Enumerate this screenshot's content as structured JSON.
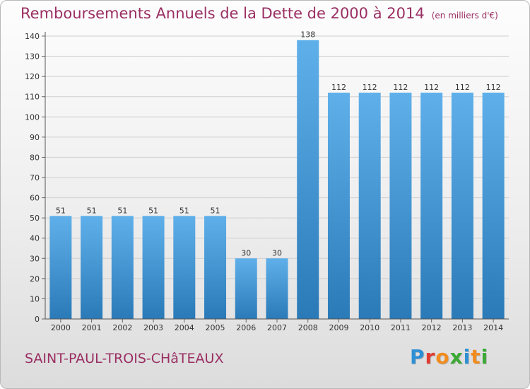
{
  "header": {
    "title": "Remboursements Annuels de la Dette de 2000 à 2014",
    "unit_note": "(en milliers d'€)"
  },
  "footer": {
    "city": "SAINT-PAUL-TROIS-CHâTEAUX",
    "logo_text": "Proxiti",
    "logo_letter_colors": [
      "#2d8fd5",
      "#e03c31",
      "#f28c1e",
      "#3aa935",
      "#2d8fd5",
      "#f28c1e",
      "#3aa935"
    ]
  },
  "colors": {
    "accent_text": "#9a2f63",
    "bar_top": "#5fb0ea",
    "bar_bottom": "#2a7ab8"
  },
  "chart_data": {
    "type": "bar",
    "title": "Remboursements Annuels de la Dette de 2000 à 2014",
    "subtitle": "(en milliers d'€)",
    "xlabel": "",
    "ylabel": "",
    "categories": [
      "2000",
      "2001",
      "2002",
      "2003",
      "2004",
      "2005",
      "2006",
      "2007",
      "2008",
      "2009",
      "2010",
      "2011",
      "2012",
      "2013",
      "2014"
    ],
    "values": [
      51,
      51,
      51,
      51,
      51,
      51,
      30,
      30,
      138,
      112,
      112,
      112,
      112,
      112,
      112
    ],
    "ylim": [
      0,
      140
    ],
    "yticks": [
      0,
      10,
      20,
      30,
      40,
      50,
      60,
      70,
      80,
      90,
      100,
      110,
      120,
      130,
      140
    ],
    "grid": true,
    "data_labels": true
  }
}
